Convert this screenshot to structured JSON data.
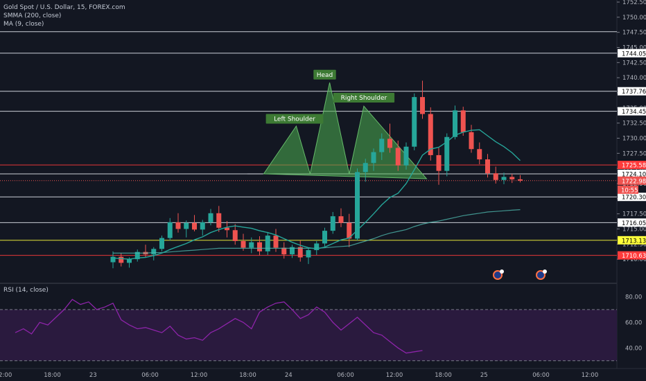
{
  "header": {
    "symbol_line": "Gold Spot / U.S. Dollar, 15, FOREX.com",
    "indicator_1": "SMMA (200, close)",
    "indicator_2": "MA (9, close)",
    "rsi_label": "RSI (14, close)"
  },
  "colors": {
    "background": "#131722",
    "up": "#26a69a",
    "down": "#ef5350",
    "white_line": "#e0e3eb",
    "red_line": "#ff3b3b",
    "yellow_line": "#ffff3b",
    "pattern_fill": "#4caf50",
    "rsi_band": "#2a1a3e",
    "rsi_line": "#8e24aa"
  },
  "chart_data": [
    {
      "type": "candlestick",
      "title": "Gold Spot / U.S. Dollar, 15, FOREX.com",
      "ylim": [
        1707.5,
        1752.5
      ],
      "y_ticks": [
        "1710.00",
        "1712.50",
        "1715.00",
        "1717.50",
        "1720.00",
        "1722.50",
        "1725.00",
        "1727.50",
        "1730.00",
        "1732.50",
        "1735.00",
        "1737.50",
        "1740.00",
        "1742.50",
        "1745.00",
        "1747.50",
        "1750.00",
        "1752.50"
      ],
      "x_ticks": [
        "12:00",
        "18:00",
        "23",
        "06:00",
        "12:00",
        "18:00",
        "24",
        "06:00",
        "12:00",
        "18:00",
        "25",
        "06:00",
        "12:00"
      ],
      "x_tick_positions": [
        0,
        6,
        11,
        18,
        24,
        30,
        35,
        42,
        48,
        54,
        59,
        66,
        72
      ],
      "horizontal_levels": [
        {
          "value": 1744.05,
          "color": "white",
          "label": "1744.05"
        },
        {
          "value": 1737.76,
          "color": "white",
          "label": "1737.76"
        },
        {
          "value": 1734.45,
          "color": "white",
          "label": "1734.45"
        },
        {
          "value": 1725.58,
          "color": "red",
          "label": "1725.58"
        },
        {
          "value": 1724.1,
          "color": "white",
          "label": "1724.10"
        },
        {
          "value": 1720.3,
          "color": "white",
          "label": "1720.30"
        },
        {
          "value": 1716.05,
          "color": "white",
          "label": "1716.05"
        },
        {
          "value": 1713.13,
          "color": "yellow",
          "label": "1713.13"
        },
        {
          "value": 1710.63,
          "color": "red",
          "label": "1710.63"
        },
        {
          "value": 1747.6,
          "color": "white",
          "label": ""
        }
      ],
      "last_price": {
        "value": 1722.98,
        "label": "1722.98",
        "countdown": "10:55"
      },
      "pattern": {
        "name": "head-and-shoulders",
        "neckline": 1724.1,
        "points": [
          [
            30.5,
            1724.1
          ],
          [
            34.5,
            1732.0
          ],
          [
            36.2,
            1724.1
          ],
          [
            38.6,
            1739.2
          ],
          [
            41.0,
            1724.1
          ],
          [
            42.8,
            1735.3
          ],
          [
            50.5,
            1723.3
          ]
        ],
        "annotations": [
          {
            "text": "Left Shoulder",
            "x": 34.3,
            "y": 1733.2
          },
          {
            "text": "Head",
            "x": 38.0,
            "y": 1740.5
          },
          {
            "text": "Right Shoulder",
            "x": 42.8,
            "y": 1736.7
          }
        ]
      },
      "candles": [
        [
          1709.5,
          1711.3,
          1708.5,
          1710.4
        ],
        [
          1710.4,
          1711.0,
          1708.8,
          1709.4
        ],
        [
          1709.4,
          1710.3,
          1708.6,
          1710.0
        ],
        [
          1710.0,
          1711.6,
          1709.6,
          1711.2
        ],
        [
          1711.2,
          1712.4,
          1710.3,
          1710.8
        ],
        [
          1710.8,
          1712.0,
          1709.8,
          1711.7
        ],
        [
          1711.7,
          1713.9,
          1711.3,
          1713.5
        ],
        [
          1713.5,
          1716.8,
          1713.1,
          1716.1
        ],
        [
          1716.1,
          1717.6,
          1714.4,
          1715.0
        ],
        [
          1715.0,
          1716.4,
          1713.6,
          1716.0
        ],
        [
          1716.0,
          1717.3,
          1714.6,
          1714.9
        ],
        [
          1714.9,
          1716.5,
          1713.9,
          1716.1
        ],
        [
          1716.1,
          1718.3,
          1715.6,
          1717.6
        ],
        [
          1717.6,
          1718.8,
          1714.5,
          1715.2
        ],
        [
          1715.2,
          1716.3,
          1713.6,
          1714.8
        ],
        [
          1714.8,
          1715.8,
          1712.4,
          1713.0
        ],
        [
          1713.0,
          1714.2,
          1711.4,
          1711.9
        ],
        [
          1711.9,
          1713.6,
          1711.0,
          1712.8
        ],
        [
          1712.8,
          1713.8,
          1710.6,
          1711.3
        ],
        [
          1711.3,
          1714.5,
          1710.7,
          1713.9
        ],
        [
          1713.9,
          1715.0,
          1711.2,
          1711.9
        ],
        [
          1711.9,
          1712.8,
          1710.1,
          1710.8
        ],
        [
          1710.8,
          1712.4,
          1710.2,
          1712.0
        ],
        [
          1712.0,
          1713.1,
          1709.6,
          1710.3
        ],
        [
          1710.3,
          1711.8,
          1709.2,
          1711.5
        ],
        [
          1711.5,
          1713.0,
          1710.7,
          1712.6
        ],
        [
          1712.6,
          1715.2,
          1712.1,
          1714.7
        ],
        [
          1714.7,
          1717.8,
          1714.2,
          1717.1
        ],
        [
          1717.1,
          1718.4,
          1715.3,
          1716.0
        ],
        [
          1716.0,
          1717.5,
          1712.0,
          1713.4
        ],
        [
          1713.4,
          1725.0,
          1713.1,
          1724.4
        ],
        [
          1724.4,
          1726.6,
          1722.8,
          1725.9
        ],
        [
          1725.9,
          1728.3,
          1724.6,
          1727.7
        ],
        [
          1727.7,
          1730.8,
          1726.4,
          1729.9
        ],
        [
          1729.9,
          1732.4,
          1727.6,
          1728.4
        ],
        [
          1728.4,
          1729.6,
          1724.6,
          1725.5
        ],
        [
          1725.5,
          1729.3,
          1724.8,
          1728.6
        ],
        [
          1728.6,
          1737.4,
          1728.0,
          1736.8
        ],
        [
          1736.8,
          1739.5,
          1733.2,
          1734.0
        ],
        [
          1734.0,
          1735.1,
          1726.3,
          1727.2
        ],
        [
          1727.2,
          1728.4,
          1722.3,
          1724.6
        ],
        [
          1724.6,
          1730.8,
          1723.7,
          1730.2
        ],
        [
          1730.2,
          1735.4,
          1729.8,
          1734.6
        ],
        [
          1734.6,
          1735.2,
          1730.4,
          1731.0
        ],
        [
          1731.0,
          1732.2,
          1727.6,
          1728.2
        ],
        [
          1728.2,
          1729.3,
          1725.7,
          1726.5
        ],
        [
          1726.5,
          1727.4,
          1723.5,
          1724.2
        ],
        [
          1724.2,
          1725.3,
          1722.5,
          1723.1
        ],
        [
          1723.1,
          1724.3,
          1722.4,
          1723.6
        ],
        [
          1723.6,
          1724.1,
          1722.6,
          1723.2
        ],
        [
          1723.2,
          1723.9,
          1722.7,
          1722.98
        ]
      ],
      "smma_200": [
        1711.0,
        1711.0,
        1711.0,
        1711.0,
        1711.0,
        1711.1,
        1711.1,
        1711.2,
        1711.3,
        1711.4,
        1711.5,
        1711.6,
        1711.7,
        1711.8,
        1711.8,
        1711.8,
        1711.8,
        1711.8,
        1711.8,
        1711.8,
        1711.8,
        1711.8,
        1711.8,
        1711.8,
        1711.8,
        1711.8,
        1711.9,
        1712.0,
        1712.1,
        1712.2,
        1712.6,
        1713.0,
        1713.4,
        1713.9,
        1714.3,
        1714.6,
        1714.9,
        1715.4,
        1715.8,
        1716.1,
        1716.3,
        1716.6,
        1716.9,
        1717.2,
        1717.4,
        1717.6,
        1717.8,
        1717.9,
        1718.0,
        1718.1,
        1718.2
      ],
      "ma_9": [
        1710.2,
        1710.1,
        1710.0,
        1710.2,
        1710.3,
        1710.6,
        1711.0,
        1711.6,
        1712.1,
        1712.6,
        1713.2,
        1713.7,
        1714.4,
        1714.9,
        1715.3,
        1715.5,
        1715.3,
        1715.1,
        1714.7,
        1714.4,
        1714.0,
        1713.4,
        1712.8,
        1712.3,
        1711.9,
        1711.7,
        1712.0,
        1712.6,
        1713.2,
        1713.5,
        1714.8,
        1716.1,
        1717.5,
        1719.0,
        1720.2,
        1720.9,
        1722.5,
        1724.8,
        1727.2,
        1728.2,
        1728.5,
        1729.4,
        1730.5,
        1731.0,
        1731.3,
        1731.4,
        1730.4,
        1729.4,
        1728.6,
        1727.6,
        1726.3
      ],
      "rsi": {
        "ylim": [
          25,
          90
        ],
        "y_ticks": [
          "40.00",
          "60.00",
          "80.00"
        ],
        "upper": 70,
        "lower": 30,
        "values": [
          52,
          55,
          51,
          60,
          58,
          64,
          70,
          78,
          74,
          76,
          70,
          72,
          75,
          62,
          58,
          55,
          56,
          54,
          52,
          57,
          50,
          47,
          48,
          46,
          52,
          55,
          59,
          63,
          60,
          55,
          68,
          72,
          75,
          76,
          70,
          63,
          66,
          72,
          68,
          60,
          54,
          59,
          64,
          58,
          52,
          50,
          45,
          40,
          36,
          37,
          38
        ]
      }
    }
  ]
}
